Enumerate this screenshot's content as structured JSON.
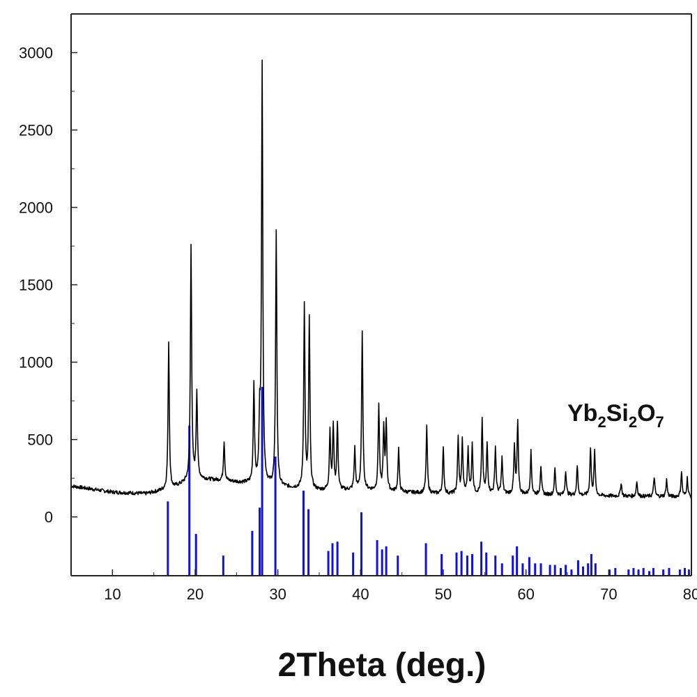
{
  "chart_data": {
    "type": "line",
    "xlabel": "2Theta (deg.)",
    "ylabel": "",
    "xlim": [
      5,
      80
    ],
    "ylim": [
      -380,
      3250
    ],
    "xticks": [
      10,
      20,
      30,
      40,
      50,
      60,
      70,
      80
    ],
    "yticks": [
      0,
      500,
      1000,
      1500,
      2000,
      2500,
      3000
    ],
    "grid": false,
    "annotation": {
      "parts": [
        {
          "text": "Yb",
          "sub": false
        },
        {
          "text": "2",
          "sub": true
        },
        {
          "text": "Si",
          "sub": false
        },
        {
          "text": "2",
          "sub": true
        },
        {
          "text": "O",
          "sub": false
        },
        {
          "text": "7",
          "sub": true
        }
      ],
      "x": 65,
      "y": 620
    },
    "series": [
      {
        "kind": "xrd-pattern",
        "color": "#000000",
        "baseline": [
          [
            5,
            200
          ],
          [
            10,
            160
          ],
          [
            14,
            150
          ],
          [
            17,
            180
          ],
          [
            20,
            250
          ],
          [
            25,
            225
          ],
          [
            30,
            195
          ],
          [
            35,
            170
          ],
          [
            40,
            175
          ],
          [
            45,
            160
          ],
          [
            50,
            148
          ],
          [
            55,
            150
          ],
          [
            60,
            145
          ],
          [
            65,
            140
          ],
          [
            70,
            135
          ],
          [
            75,
            132
          ],
          [
            80,
            130
          ]
        ],
        "peaks": [
          {
            "x": 16.8,
            "y": 1130
          },
          {
            "x": 19.5,
            "y": 1760
          },
          {
            "x": 20.2,
            "y": 810
          },
          {
            "x": 23.5,
            "y": 490
          },
          {
            "x": 27.1,
            "y": 850
          },
          {
            "x": 27.8,
            "y": 600
          },
          {
            "x": 28.1,
            "y": 2920
          },
          {
            "x": 29.8,
            "y": 1840
          },
          {
            "x": 33.2,
            "y": 1360
          },
          {
            "x": 33.8,
            "y": 1280
          },
          {
            "x": 36.3,
            "y": 550
          },
          {
            "x": 36.7,
            "y": 590
          },
          {
            "x": 37.2,
            "y": 600
          },
          {
            "x": 39.3,
            "y": 440
          },
          {
            "x": 40.2,
            "y": 1190
          },
          {
            "x": 42.2,
            "y": 720
          },
          {
            "x": 42.8,
            "y": 560
          },
          {
            "x": 43.1,
            "y": 610
          },
          {
            "x": 44.6,
            "y": 440
          },
          {
            "x": 48.0,
            "y": 580
          },
          {
            "x": 50.0,
            "y": 440
          },
          {
            "x": 51.8,
            "y": 510
          },
          {
            "x": 52.3,
            "y": 490
          },
          {
            "x": 53.0,
            "y": 440
          },
          {
            "x": 53.5,
            "y": 460
          },
          {
            "x": 54.7,
            "y": 620
          },
          {
            "x": 55.3,
            "y": 470
          },
          {
            "x": 56.3,
            "y": 450
          },
          {
            "x": 57.1,
            "y": 380
          },
          {
            "x": 58.6,
            "y": 450
          },
          {
            "x": 59.0,
            "y": 620
          },
          {
            "x": 60.6,
            "y": 420
          },
          {
            "x": 61.8,
            "y": 330
          },
          {
            "x": 63.5,
            "y": 310
          },
          {
            "x": 64.8,
            "y": 300
          },
          {
            "x": 66.2,
            "y": 330
          },
          {
            "x": 67.8,
            "y": 440
          },
          {
            "x": 68.3,
            "y": 420
          },
          {
            "x": 71.5,
            "y": 220
          },
          {
            "x": 73.4,
            "y": 230
          },
          {
            "x": 75.5,
            "y": 260
          },
          {
            "x": 77.0,
            "y": 240
          },
          {
            "x": 78.8,
            "y": 290
          },
          {
            "x": 79.5,
            "y": 250
          }
        ]
      },
      {
        "kind": "reference-sticks",
        "color": "#1010e0",
        "base": -380,
        "sticks": [
          {
            "x": 16.7,
            "y": 100
          },
          {
            "x": 19.3,
            "y": 590
          },
          {
            "x": 20.1,
            "y": -110
          },
          {
            "x": 23.4,
            "y": -250
          },
          {
            "x": 26.9,
            "y": -90
          },
          {
            "x": 27.8,
            "y": 60
          },
          {
            "x": 28.1,
            "y": 840
          },
          {
            "x": 29.7,
            "y": 390
          },
          {
            "x": 33.1,
            "y": 170
          },
          {
            "x": 33.7,
            "y": 50
          },
          {
            "x": 36.1,
            "y": -220
          },
          {
            "x": 36.6,
            "y": -170
          },
          {
            "x": 37.2,
            "y": -160
          },
          {
            "x": 39.1,
            "y": -230
          },
          {
            "x": 40.1,
            "y": 30
          },
          {
            "x": 42.0,
            "y": -150
          },
          {
            "x": 42.6,
            "y": -210
          },
          {
            "x": 43.1,
            "y": -190
          },
          {
            "x": 44.5,
            "y": -250
          },
          {
            "x": 47.9,
            "y": -170
          },
          {
            "x": 49.8,
            "y": -240
          },
          {
            "x": 51.6,
            "y": -230
          },
          {
            "x": 52.2,
            "y": -220
          },
          {
            "x": 52.9,
            "y": -250
          },
          {
            "x": 53.5,
            "y": -240
          },
          {
            "x": 54.6,
            "y": -160
          },
          {
            "x": 55.2,
            "y": -230
          },
          {
            "x": 56.3,
            "y": -250
          },
          {
            "x": 57.1,
            "y": -300
          },
          {
            "x": 58.4,
            "y": -250
          },
          {
            "x": 58.9,
            "y": -190
          },
          {
            "x": 59.6,
            "y": -300
          },
          {
            "x": 60.4,
            "y": -260
          },
          {
            "x": 61.1,
            "y": -300
          },
          {
            "x": 61.8,
            "y": -300
          },
          {
            "x": 62.9,
            "y": -310
          },
          {
            "x": 63.5,
            "y": -310
          },
          {
            "x": 64.2,
            "y": -330
          },
          {
            "x": 64.8,
            "y": -310
          },
          {
            "x": 65.5,
            "y": -340
          },
          {
            "x": 66.3,
            "y": -280
          },
          {
            "x": 66.9,
            "y": -320
          },
          {
            "x": 67.5,
            "y": -300
          },
          {
            "x": 67.9,
            "y": -240
          },
          {
            "x": 68.4,
            "y": -300
          },
          {
            "x": 70.1,
            "y": -340
          },
          {
            "x": 70.8,
            "y": -330
          },
          {
            "x": 72.4,
            "y": -340
          },
          {
            "x": 73.0,
            "y": -330
          },
          {
            "x": 73.6,
            "y": -340
          },
          {
            "x": 74.2,
            "y": -330
          },
          {
            "x": 74.9,
            "y": -350
          },
          {
            "x": 75.4,
            "y": -330
          },
          {
            "x": 76.6,
            "y": -340
          },
          {
            "x": 77.3,
            "y": -330
          },
          {
            "x": 78.6,
            "y": -340
          },
          {
            "x": 79.2,
            "y": -330
          },
          {
            "x": 79.7,
            "y": -340
          }
        ]
      }
    ]
  }
}
